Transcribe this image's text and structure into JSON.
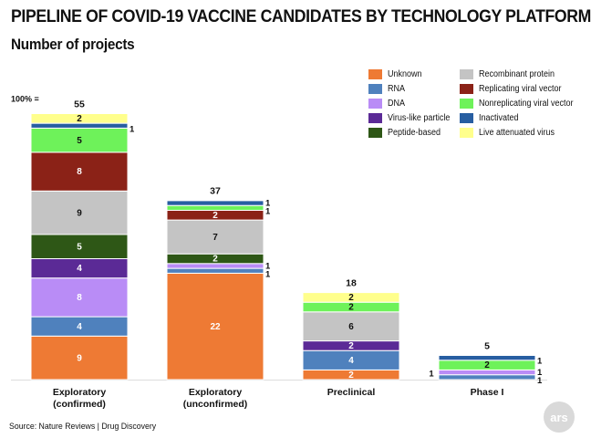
{
  "title": "PIPELINE OF COVID-19 VACCINE CANDIDATES BY TECHNOLOGY PLATFORM",
  "subtitle": "Number of projects",
  "source": "Source:  Nature Reviews | Drug Discovery",
  "logo_text": "ars",
  "colors": {
    "Unknown": "#ee7a34",
    "RNA": "#4f81bd",
    "DNA": "#b98cf6",
    "Virus-like particle": "#5b2a96",
    "Peptide-based": "#2e5716",
    "Recombinant protein": "#c4c4c4",
    "Replicating viral vector": "#8b2217",
    "Nonreplicating viral vector": "#6ef25a",
    "Inactivated": "#275ea1",
    "Live attenuated virus": "#ffff8c"
  },
  "legend": [
    "Unknown",
    "RNA",
    "DNA",
    "Virus-like particle",
    "Peptide-based",
    "Recombinant protein",
    "Replicating viral vector",
    "Nonreplicating viral vector",
    "Inactivated",
    "Live attenuated virus"
  ],
  "chart_data": {
    "type": "bar",
    "stacked": true,
    "title": "PIPELINE OF COVID-19 VACCINE CANDIDATES BY TECHNOLOGY PLATFORM",
    "subtitle": "Number of projects",
    "scale_label": "100% =",
    "categories": [
      "Exploratory\n(confirmed)",
      "Exploratory\n(unconfirmed)",
      "Preclinical",
      "Phase I"
    ],
    "totals": [
      "55",
      "37",
      "18",
      "5"
    ],
    "series": [
      {
        "name": "Unknown",
        "values": [
          9,
          22,
          2,
          0
        ]
      },
      {
        "name": "RNA",
        "values": [
          4,
          1,
          4,
          1
        ]
      },
      {
        "name": "DNA",
        "values": [
          8,
          1,
          0,
          1
        ]
      },
      {
        "name": "Virus-like particle",
        "values": [
          4,
          0,
          2,
          0
        ]
      },
      {
        "name": "Peptide-based",
        "values": [
          5,
          2,
          0,
          0
        ]
      },
      {
        "name": "Recombinant protein",
        "values": [
          9,
          7,
          6,
          0
        ]
      },
      {
        "name": "Replicating viral vector",
        "values": [
          8,
          2,
          0,
          0
        ]
      },
      {
        "name": "Nonreplicating viral vector",
        "values": [
          5,
          1,
          2,
          2
        ]
      },
      {
        "name": "Inactivated",
        "values": [
          1,
          1,
          0,
          1
        ]
      },
      {
        "name": "Live attenuated virus",
        "values": [
          2,
          0,
          2,
          0
        ]
      }
    ],
    "ylim": [
      0,
      55
    ],
    "grid": false,
    "legend_position": "top-right"
  }
}
